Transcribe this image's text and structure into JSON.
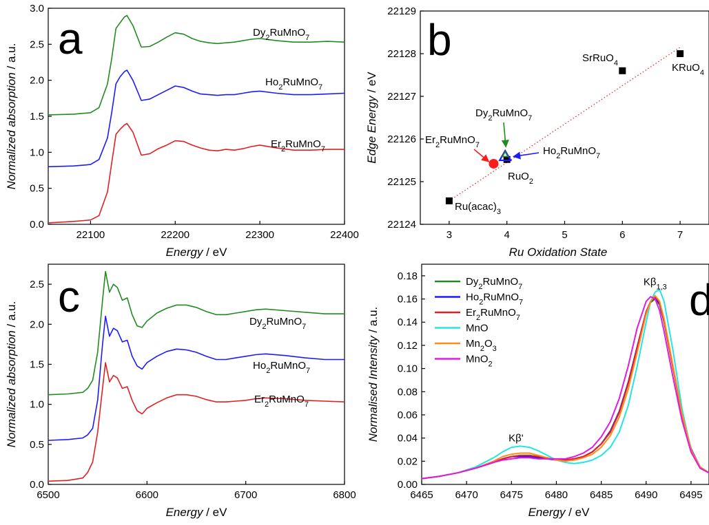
{
  "chart_data": [
    {
      "panel": "a",
      "type": "line",
      "xlabel": {
        "italic": "Energy",
        "unit": " / eV"
      },
      "ylabel": {
        "italic": "Normalized absorption",
        "unit": " / a.u."
      },
      "xlim": [
        22050,
        22400
      ],
      "ylim": [
        0,
        3.0
      ],
      "xticks": [
        22100,
        22200,
        22300,
        22400
      ],
      "yticks": [
        0.0,
        0.5,
        1.0,
        1.5,
        2.0,
        2.5,
        3.0
      ],
      "series": [
        {
          "name": "Er2RuMnO7",
          "color": "#e02020",
          "x": [
            22050,
            22080,
            22100,
            22110,
            22120,
            22125,
            22130,
            22135,
            22140,
            22143,
            22150,
            22160,
            22170,
            22180,
            22190,
            22200,
            22210,
            22220,
            22230,
            22240,
            22250,
            22260,
            22270,
            22280,
            22290,
            22300,
            22320,
            22340,
            22360,
            22380,
            22400
          ],
          "y": [
            0.02,
            0.04,
            0.06,
            0.12,
            0.45,
            0.85,
            1.25,
            1.32,
            1.38,
            1.4,
            1.28,
            0.96,
            0.98,
            1.05,
            1.1,
            1.16,
            1.15,
            1.1,
            1.06,
            1.03,
            1.02,
            1.04,
            1.03,
            1.05,
            1.08,
            1.1,
            1.06,
            1.03,
            1.03,
            1.04,
            1.04
          ]
        },
        {
          "name": "Ho2RuMnO7",
          "color": "#1a1aff",
          "x": [
            22050,
            22080,
            22100,
            22110,
            22120,
            22125,
            22130,
            22135,
            22140,
            22143,
            22150,
            22160,
            22170,
            22180,
            22190,
            22200,
            22210,
            22220,
            22230,
            22240,
            22250,
            22260,
            22270,
            22280,
            22290,
            22300,
            22320,
            22340,
            22360,
            22380,
            22400
          ],
          "y": [
            0.8,
            0.81,
            0.83,
            0.9,
            1.2,
            1.55,
            1.95,
            2.05,
            2.12,
            2.14,
            2.0,
            1.72,
            1.74,
            1.8,
            1.86,
            1.92,
            1.9,
            1.85,
            1.81,
            1.8,
            1.79,
            1.8,
            1.8,
            1.82,
            1.84,
            1.85,
            1.82,
            1.8,
            1.8,
            1.81,
            1.82
          ]
        },
        {
          "name": "Dy2RuMnO7",
          "color": "#218a21",
          "x": [
            22050,
            22080,
            22100,
            22110,
            22120,
            22125,
            22130,
            22135,
            22140,
            22143,
            22150,
            22160,
            22170,
            22180,
            22190,
            22200,
            22210,
            22220,
            22230,
            22240,
            22250,
            22260,
            22270,
            22280,
            22290,
            22300,
            22320,
            22340,
            22360,
            22380,
            22400
          ],
          "y": [
            1.52,
            1.53,
            1.55,
            1.62,
            1.95,
            2.3,
            2.72,
            2.8,
            2.88,
            2.9,
            2.76,
            2.46,
            2.47,
            2.53,
            2.6,
            2.66,
            2.64,
            2.58,
            2.54,
            2.52,
            2.51,
            2.52,
            2.53,
            2.55,
            2.57,
            2.58,
            2.55,
            2.53,
            2.53,
            2.54,
            2.53
          ]
        }
      ]
    },
    {
      "panel": "b",
      "type": "scatter",
      "xlabel": {
        "italic": "Ru Oxidation State",
        "unit": ""
      },
      "ylabel": {
        "italic": "Edge Energy",
        "unit": " / eV"
      },
      "xlim": [
        2.5,
        7.5
      ],
      "ylim": [
        22124,
        22129
      ],
      "xticks": [
        3,
        4,
        5,
        6,
        7
      ],
      "yticks": [
        22124,
        22125,
        22126,
        22127,
        22128,
        22129
      ],
      "fit_line": {
        "x": [
          3.0,
          7.0
        ],
        "y": [
          22124.55,
          22128.15
        ]
      },
      "points": [
        {
          "label": "Ru(acac)3",
          "x": 3.0,
          "y": 22124.55,
          "marker": "square",
          "color": "#000000"
        },
        {
          "label": "RuO2",
          "x": 4.0,
          "y": 22125.52,
          "marker": "square",
          "color": "#000000"
        },
        {
          "label": "SrRuO4",
          "x": 6.0,
          "y": 22127.6,
          "marker": "square",
          "color": "#000000"
        },
        {
          "label": "KRuO4",
          "x": 7.0,
          "y": 22128.0,
          "marker": "square",
          "color": "#000000"
        },
        {
          "label": "Er2RuMnO7",
          "x": 3.77,
          "y": 22125.42,
          "marker": "circle",
          "color": "#ff1a1a"
        },
        {
          "label": "Ho2RuMnO7",
          "x": 3.97,
          "y": 22125.58,
          "marker": "triangle",
          "color": "#1a1aff"
        },
        {
          "label": "Dy2RuMnO7",
          "x": 3.97,
          "y": 22125.62,
          "marker": "triangle-small",
          "color": "#218a21"
        }
      ]
    },
    {
      "panel": "c",
      "type": "line",
      "xlabel": {
        "italic": "Energy",
        "unit": " / eV"
      },
      "ylabel": {
        "italic": "Normalized absorption",
        "unit": " / a.u."
      },
      "xlim": [
        6500,
        6800
      ],
      "ylim": [
        0,
        2.75
      ],
      "xticks": [
        6500,
        6600,
        6700,
        6800
      ],
      "yticks": [
        0.0,
        0.5,
        1.0,
        1.5,
        2.0,
        2.5
      ],
      "series": [
        {
          "name": "Er2RuMnO7",
          "color": "#e02020",
          "x": [
            6500,
            6520,
            6535,
            6540,
            6545,
            6550,
            6555,
            6558,
            6562,
            6566,
            6570,
            6575,
            6580,
            6585,
            6590,
            6595,
            6600,
            6610,
            6620,
            6630,
            6640,
            6650,
            6660,
            6670,
            6680,
            6690,
            6700,
            6710,
            6720,
            6740,
            6760,
            6780,
            6800
          ],
          "y": [
            0.04,
            0.05,
            0.08,
            0.15,
            0.28,
            0.65,
            1.2,
            1.52,
            1.28,
            1.36,
            1.33,
            1.2,
            1.22,
            1.05,
            0.92,
            0.88,
            0.95,
            1.02,
            1.08,
            1.12,
            1.12,
            1.1,
            1.06,
            1.03,
            1.03,
            1.04,
            1.05,
            1.07,
            1.08,
            1.07,
            1.05,
            1.04,
            1.03
          ]
        },
        {
          "name": "Ho2RuMnO7",
          "color": "#1a1aff",
          "x": [
            6500,
            6520,
            6535,
            6540,
            6545,
            6550,
            6555,
            6558,
            6562,
            6566,
            6570,
            6575,
            6580,
            6585,
            6590,
            6595,
            6600,
            6610,
            6620,
            6630,
            6640,
            6650,
            6660,
            6670,
            6680,
            6690,
            6700,
            6710,
            6720,
            6740,
            6760,
            6780,
            6800
          ],
          "y": [
            0.55,
            0.56,
            0.58,
            0.62,
            0.7,
            1.05,
            1.75,
            2.1,
            1.85,
            1.95,
            1.92,
            1.78,
            1.8,
            1.6,
            1.48,
            1.44,
            1.52,
            1.6,
            1.66,
            1.69,
            1.68,
            1.65,
            1.6,
            1.56,
            1.56,
            1.58,
            1.6,
            1.62,
            1.63,
            1.61,
            1.58,
            1.56,
            1.56
          ]
        },
        {
          "name": "Dy2RuMnO7",
          "color": "#218a21",
          "x": [
            6500,
            6520,
            6535,
            6540,
            6545,
            6550,
            6555,
            6558,
            6562,
            6566,
            6570,
            6575,
            6580,
            6585,
            6590,
            6595,
            6600,
            6610,
            6620,
            6630,
            6640,
            6650,
            6660,
            6670,
            6680,
            6690,
            6700,
            6710,
            6720,
            6740,
            6760,
            6780,
            6800
          ],
          "y": [
            1.12,
            1.13,
            1.15,
            1.2,
            1.3,
            1.65,
            2.3,
            2.66,
            2.4,
            2.5,
            2.46,
            2.3,
            2.33,
            2.12,
            1.98,
            1.96,
            2.04,
            2.14,
            2.2,
            2.24,
            2.24,
            2.21,
            2.16,
            2.12,
            2.12,
            2.14,
            2.16,
            2.18,
            2.19,
            2.17,
            2.15,
            2.13,
            2.13
          ]
        }
      ]
    },
    {
      "panel": "d",
      "type": "line",
      "xlabel": {
        "italic": "Energy",
        "unit": " / eV"
      },
      "ylabel": {
        "italic": "Normalised Intensity",
        "unit": " / a.u."
      },
      "xlim": [
        6465,
        6497
      ],
      "ylim": [
        0,
        0.19
      ],
      "xticks": [
        6465,
        6470,
        6475,
        6480,
        6485,
        6490,
        6495
      ],
      "yticks": [
        0.0,
        0.02,
        0.04,
        0.06,
        0.08,
        0.1,
        0.12,
        0.14,
        0.16,
        0.18
      ],
      "peak_labels": [
        {
          "text": "Kβ'",
          "x": 6475.5,
          "y": 0.037
        },
        {
          "text": "Kβ1,3",
          "x": 6491.0,
          "y": 0.172
        }
      ],
      "series": [
        {
          "name": "Dy2RuMnO7",
          "color": "#218a21",
          "x": [
            6465,
            6467,
            6469,
            6471,
            6473,
            6474,
            6475,
            6476,
            6477,
            6478,
            6479,
            6480,
            6481,
            6482,
            6483,
            6484,
            6485,
            6486,
            6487,
            6488,
            6489,
            6490,
            6490.5,
            6491,
            6491.5,
            6492,
            6493,
            6494,
            6495,
            6496,
            6497
          ],
          "y": [
            0.005,
            0.007,
            0.01,
            0.014,
            0.019,
            0.022,
            0.024,
            0.025,
            0.025,
            0.024,
            0.023,
            0.021,
            0.021,
            0.022,
            0.024,
            0.028,
            0.035,
            0.045,
            0.062,
            0.087,
            0.118,
            0.148,
            0.157,
            0.16,
            0.155,
            0.14,
            0.1,
            0.06,
            0.03,
            0.015,
            0.01
          ]
        },
        {
          "name": "Ho2RuMnO7",
          "color": "#1a1aff",
          "x": [
            6465,
            6467,
            6469,
            6471,
            6473,
            6474,
            6475,
            6476,
            6477,
            6478,
            6479,
            6480,
            6481,
            6482,
            6483,
            6484,
            6485,
            6486,
            6487,
            6488,
            6489,
            6490,
            6490.5,
            6491,
            6491.5,
            6492,
            6493,
            6494,
            6495,
            6496,
            6497
          ],
          "y": [
            0.005,
            0.007,
            0.01,
            0.014,
            0.019,
            0.022,
            0.024,
            0.024,
            0.024,
            0.023,
            0.022,
            0.021,
            0.021,
            0.022,
            0.024,
            0.028,
            0.035,
            0.046,
            0.063,
            0.088,
            0.119,
            0.149,
            0.158,
            0.161,
            0.156,
            0.141,
            0.101,
            0.061,
            0.031,
            0.015,
            0.01
          ]
        },
        {
          "name": "Er2RuMnO7",
          "color": "#e02020",
          "x": [
            6465,
            6467,
            6469,
            6471,
            6473,
            6474,
            6475,
            6476,
            6477,
            6478,
            6479,
            6480,
            6481,
            6482,
            6483,
            6484,
            6485,
            6486,
            6487,
            6488,
            6489,
            6490,
            6490.5,
            6491,
            6491.5,
            6492,
            6493,
            6494,
            6495,
            6496,
            6497
          ],
          "y": [
            0.005,
            0.007,
            0.01,
            0.014,
            0.019,
            0.022,
            0.024,
            0.025,
            0.025,
            0.024,
            0.023,
            0.021,
            0.021,
            0.022,
            0.024,
            0.028,
            0.035,
            0.045,
            0.062,
            0.087,
            0.118,
            0.149,
            0.158,
            0.162,
            0.157,
            0.141,
            0.1,
            0.06,
            0.03,
            0.015,
            0.01
          ]
        },
        {
          "name": "MnO",
          "color": "#22e5e5",
          "x": [
            6465,
            6467,
            6469,
            6471,
            6473,
            6474,
            6475,
            6476,
            6477,
            6478,
            6479,
            6480,
            6481,
            6482,
            6483,
            6484,
            6485,
            6486,
            6487,
            6488,
            6489,
            6490,
            6490.5,
            6491,
            6491.5,
            6492,
            6493,
            6494,
            6495,
            6496,
            6497
          ],
          "y": [
            0.005,
            0.007,
            0.01,
            0.015,
            0.023,
            0.028,
            0.032,
            0.033,
            0.032,
            0.029,
            0.025,
            0.021,
            0.019,
            0.018,
            0.019,
            0.021,
            0.025,
            0.032,
            0.045,
            0.068,
            0.102,
            0.14,
            0.158,
            0.166,
            0.168,
            0.158,
            0.115,
            0.065,
            0.03,
            0.014,
            0.01
          ]
        },
        {
          "name": "Mn2O3",
          "color": "#ff8c1a",
          "x": [
            6465,
            6467,
            6469,
            6471,
            6473,
            6474,
            6475,
            6476,
            6477,
            6478,
            6479,
            6480,
            6481,
            6482,
            6483,
            6484,
            6485,
            6486,
            6487,
            6488,
            6489,
            6490,
            6490.5,
            6491,
            6491.5,
            6492,
            6493,
            6494,
            6495,
            6496,
            6497
          ],
          "y": [
            0.005,
            0.007,
            0.01,
            0.014,
            0.02,
            0.024,
            0.026,
            0.027,
            0.027,
            0.025,
            0.023,
            0.021,
            0.02,
            0.021,
            0.023,
            0.026,
            0.032,
            0.042,
            0.058,
            0.082,
            0.114,
            0.147,
            0.158,
            0.163,
            0.158,
            0.143,
            0.102,
            0.061,
            0.03,
            0.015,
            0.01
          ]
        },
        {
          "name": "MnO2",
          "color": "#e01ae0",
          "x": [
            6465,
            6467,
            6469,
            6471,
            6473,
            6474,
            6475,
            6476,
            6477,
            6478,
            6479,
            6480,
            6481,
            6482,
            6483,
            6484,
            6485,
            6486,
            6487,
            6488,
            6489,
            6490,
            6490.5,
            6491,
            6491.5,
            6492,
            6493,
            6494,
            6495,
            6496,
            6497
          ],
          "y": [
            0.005,
            0.007,
            0.01,
            0.014,
            0.019,
            0.021,
            0.022,
            0.023,
            0.023,
            0.022,
            0.022,
            0.022,
            0.022,
            0.024,
            0.027,
            0.032,
            0.041,
            0.054,
            0.074,
            0.102,
            0.135,
            0.158,
            0.162,
            0.16,
            0.15,
            0.132,
            0.092,
            0.055,
            0.028,
            0.014,
            0.01
          ]
        }
      ]
    }
  ]
}
